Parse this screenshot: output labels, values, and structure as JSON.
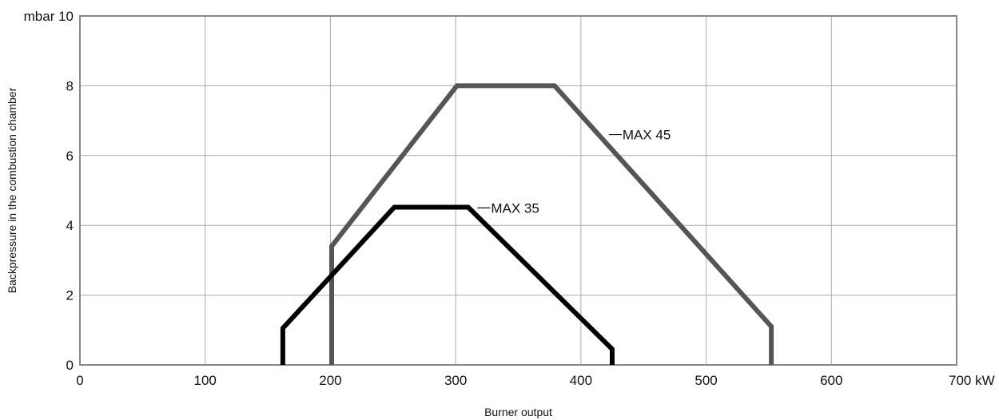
{
  "chart_data": {
    "type": "line",
    "title": "",
    "xlabel": "Burner output",
    "ylabel": "Backpressure in the combustion chamber",
    "x_unit": "kW",
    "y_unit": "mbar",
    "xlim": [
      0,
      700
    ],
    "ylim": [
      0,
      10
    ],
    "x_ticks": [
      0,
      100,
      200,
      300,
      400,
      500,
      600,
      700
    ],
    "y_ticks": [
      0,
      2,
      4,
      6,
      8,
      10
    ],
    "x_tick_labels": [
      "0",
      "100",
      "200",
      "300",
      "400",
      "500",
      "600",
      "700 kW"
    ],
    "y_tick_labels": [
      "0",
      "2",
      "4",
      "6",
      "8",
      "mbar 10"
    ],
    "grid": true,
    "legend": "none",
    "series": [
      {
        "name": "MAX 45",
        "color": "#555555",
        "points": [
          [
            201,
            0
          ],
          [
            201,
            3.4
          ],
          [
            301,
            8.0
          ],
          [
            379,
            8.0
          ],
          [
            552,
            1.1
          ],
          [
            552,
            0
          ]
        ],
        "label_at": [
          430,
          6.6
        ]
      },
      {
        "name": "MAX 35",
        "color": "#000000",
        "points": [
          [
            162,
            0
          ],
          [
            162,
            1.05
          ],
          [
            251,
            4.52
          ],
          [
            310,
            4.52
          ],
          [
            425,
            0.45
          ],
          [
            425,
            0
          ]
        ],
        "label_at": [
          325,
          4.5
        ]
      }
    ]
  }
}
